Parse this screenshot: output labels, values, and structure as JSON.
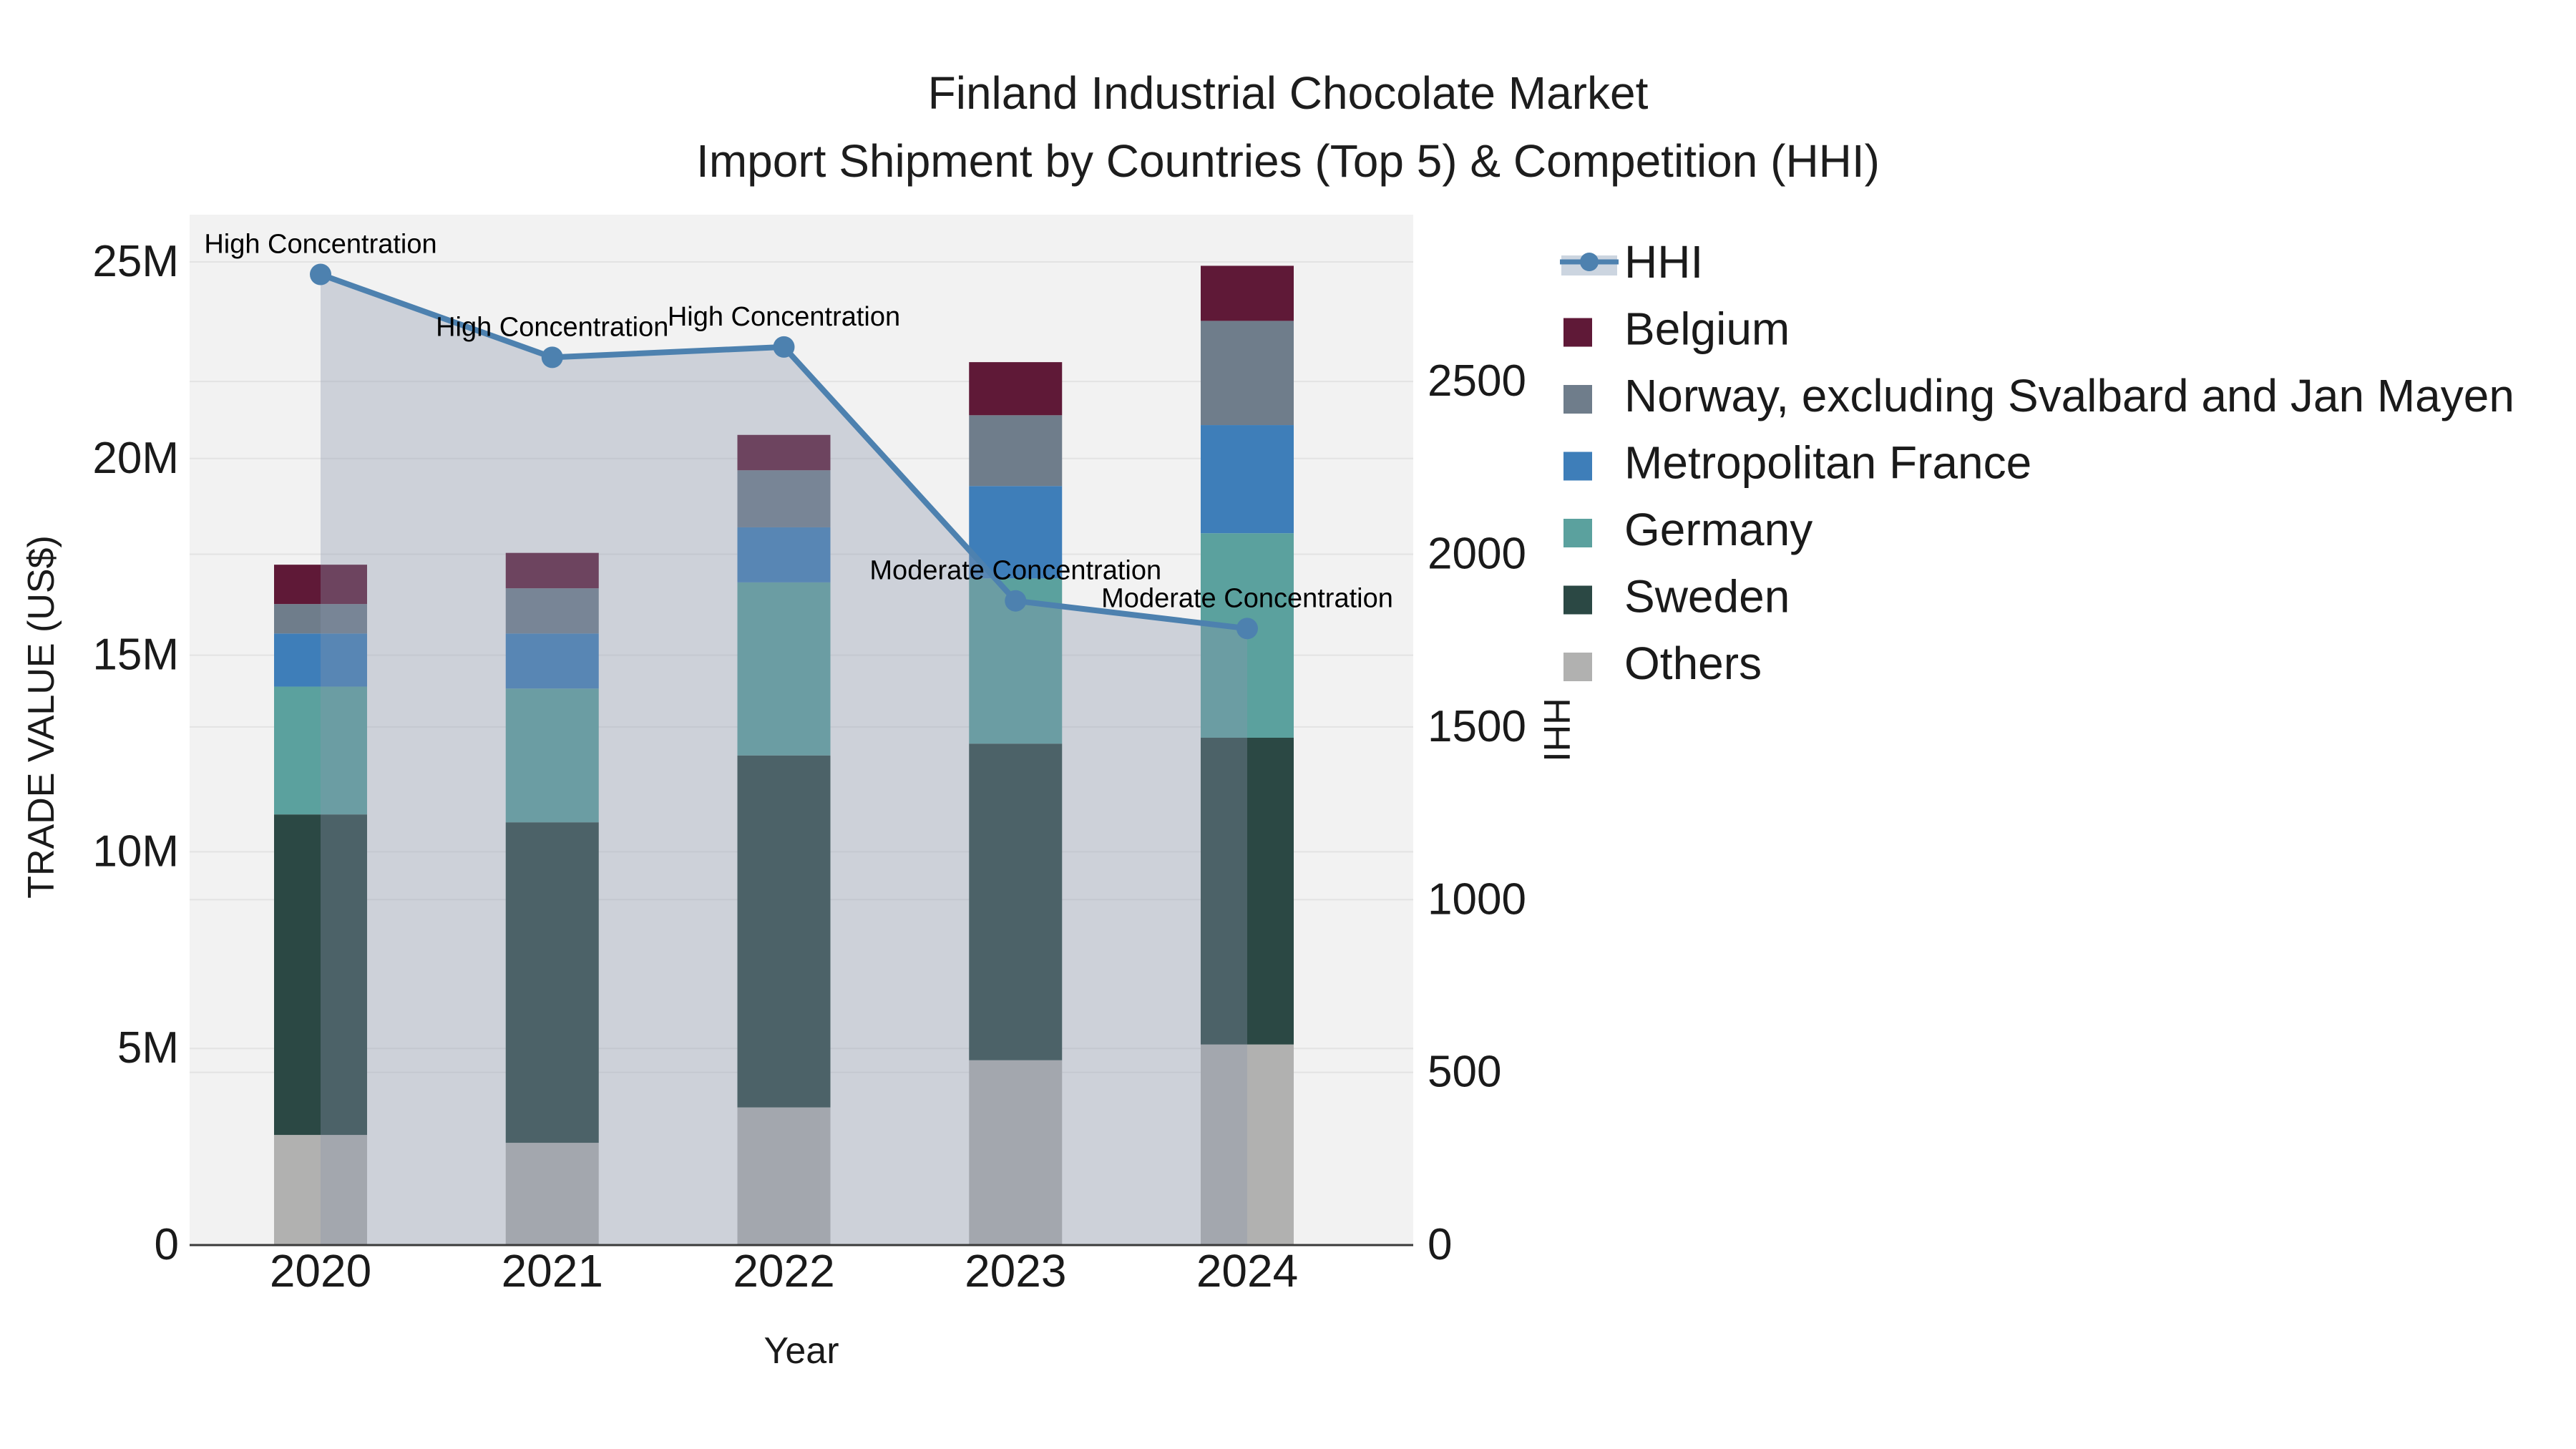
{
  "title_line1": "Finland Industrial Chocolate Market",
  "title_line2": "Import Shipment by Countries (Top 5) & Competition (HHI)",
  "colors": {
    "background": "#ffffff",
    "plot_background": "#f2f2f2",
    "gridline": "#e3e3e3",
    "axis_line": "#3a3a3a",
    "text": "#1a1a1a",
    "hhi_line": "#4d81af",
    "hhi_area_fill": "rgba(137,148,171,0.35)",
    "hhi_legend_band": "#ccd5e0"
  },
  "chart_data": {
    "type": "bar",
    "subtype": "stacked-bars-with-line-overlay",
    "categories": [
      "2020",
      "2021",
      "2022",
      "2023",
      "2024"
    ],
    "series": [
      {
        "name": "Others",
        "color": "#b1b1b0",
        "values": [
          2.8,
          2.6,
          3.5,
          4.7,
          5.1
        ]
      },
      {
        "name": "Sweden",
        "color": "#2b4844",
        "values": [
          8.15,
          8.15,
          8.95,
          8.05,
          7.8
        ]
      },
      {
        "name": "Germany",
        "color": "#5ba19e",
        "values": [
          3.25,
          3.4,
          4.4,
          4.2,
          5.2
        ]
      },
      {
        "name": "Metropolitan France",
        "color": "#3e7eb9",
        "values": [
          1.35,
          1.4,
          1.4,
          2.35,
          2.75
        ]
      },
      {
        "name": "Norway, excluding Svalbard and Jan Mayen",
        "color": "#6f7d8b",
        "values": [
          0.75,
          1.15,
          1.45,
          1.8,
          2.65
        ]
      },
      {
        "name": "Belgium",
        "color": "#5f1937",
        "values": [
          1.0,
          0.9,
          0.9,
          1.35,
          1.4
        ]
      }
    ],
    "line_series": {
      "name": "HHI",
      "color": "#4d81af",
      "area_fill": "rgba(137,148,171,0.35)",
      "values": [
        2810,
        2570,
        2600,
        1865,
        1785
      ]
    },
    "annotations": [
      {
        "category": "2020",
        "text": "High Concentration"
      },
      {
        "category": "2021",
        "text": "High Concentration"
      },
      {
        "category": "2022",
        "text": "High Concentration"
      },
      {
        "category": "2023",
        "text": "Moderate Concentration"
      },
      {
        "category": "2024",
        "text": "Moderate Concentration"
      }
    ],
    "xlabel": "Year",
    "y_left": {
      "label": "TRADE VALUE (US$)",
      "tick_values": [
        0,
        5,
        10,
        15,
        20,
        25
      ],
      "tick_labels": [
        "0",
        "5M",
        "10M",
        "15M",
        "20M",
        "25M"
      ],
      "range_max": 26.2,
      "unit": "millions US$"
    },
    "y_right": {
      "label": "HHI",
      "tick_values": [
        0,
        500,
        1000,
        1500,
        2000,
        2500
      ],
      "tick_labels": [
        "0",
        "500",
        "1000",
        "1500",
        "2000",
        "2500"
      ],
      "range_max": 2983
    },
    "grid": true,
    "legend_position": "top-right"
  },
  "legend": {
    "items": [
      {
        "label": "HHI",
        "type": "line",
        "color": "#4d81af"
      },
      {
        "label": "Belgium",
        "type": "swatch",
        "color": "#5f1937"
      },
      {
        "label": "Norway, excluding Svalbard and Jan Mayen",
        "type": "swatch",
        "color": "#6f7d8b"
      },
      {
        "label": "Metropolitan France",
        "type": "swatch",
        "color": "#3e7eb9"
      },
      {
        "label": "Germany",
        "type": "swatch",
        "color": "#5ba19e"
      },
      {
        "label": "Sweden",
        "type": "swatch",
        "color": "#2b4844"
      },
      {
        "label": "Others",
        "type": "swatch",
        "color": "#b1b1b0"
      }
    ]
  }
}
